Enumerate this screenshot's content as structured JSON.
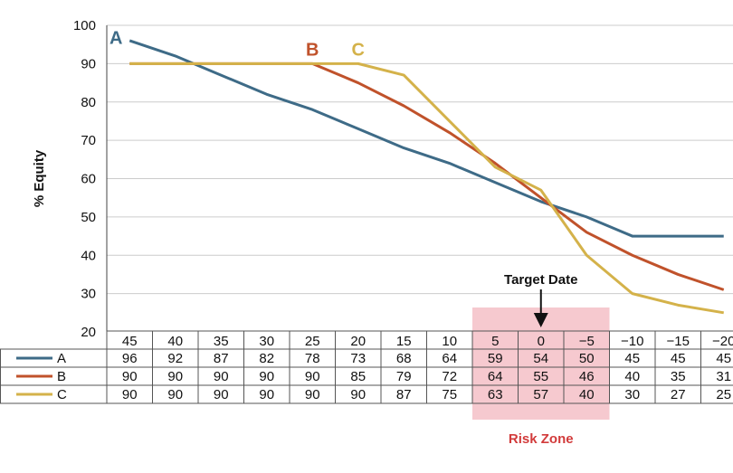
{
  "chart_data": {
    "type": "line",
    "ylabel": "% Equity",
    "ylim": [
      20,
      100
    ],
    "yticks": [
      20,
      30,
      40,
      50,
      60,
      70,
      80,
      90,
      100
    ],
    "x": [
      45,
      40,
      35,
      30,
      25,
      20,
      15,
      10,
      5,
      0,
      -5,
      -10,
      -15,
      -20
    ],
    "x_labels": [
      "45",
      "40",
      "35",
      "30",
      "25",
      "20",
      "15",
      "10",
      "5",
      "0",
      "−5",
      "−10",
      "−15",
      "−20"
    ],
    "series": [
      {
        "name": "A",
        "color": "#3e6b87",
        "values": [
          96,
          92,
          87,
          82,
          78,
          73,
          68,
          64,
          59,
          54,
          50,
          45,
          45,
          45
        ]
      },
      {
        "name": "B",
        "color": "#c0522b",
        "values": [
          90,
          90,
          90,
          90,
          90,
          85,
          79,
          72,
          64,
          55,
          46,
          40,
          35,
          31
        ]
      },
      {
        "name": "C",
        "color": "#d4b24a",
        "values": [
          90,
          90,
          90,
          90,
          90,
          90,
          87,
          75,
          63,
          57,
          40,
          30,
          27,
          25
        ]
      }
    ],
    "curve_labels": [
      {
        "text": "A",
        "x": 45,
        "y": 97
      },
      {
        "text": "B",
        "x": 25,
        "y": 94
      },
      {
        "text": "C",
        "x": 20,
        "y": 94
      }
    ],
    "annotations": {
      "target_date_label": "Target Date",
      "target_date_x": 0,
      "risk_zone_label": "Risk Zone",
      "risk_zone_color": "#f6c9cf",
      "risk_zone_x": [
        5,
        -5
      ]
    },
    "grid": true
  }
}
